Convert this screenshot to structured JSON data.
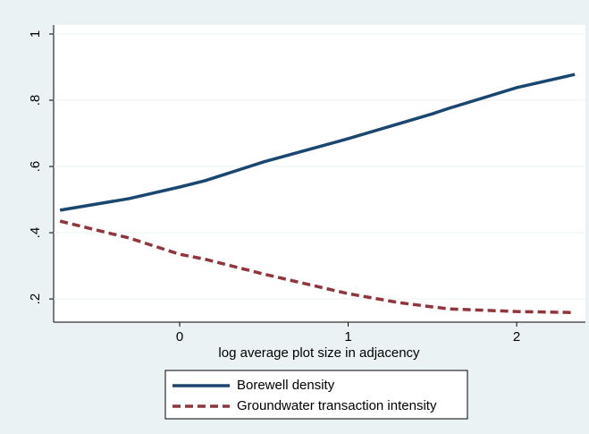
{
  "chart_data": {
    "type": "line",
    "xlabel": "log average plot size in adjacency",
    "x": [
      -0.71,
      -0.3,
      0,
      0.15,
      0.5,
      1,
      1.3,
      1.5,
      1.6,
      2,
      2.345
    ],
    "series": [
      {
        "name": "Borewell density",
        "color": "#1a476f",
        "dash": "solid",
        "values": [
          0.468,
          0.503,
          0.538,
          0.557,
          0.614,
          0.684,
          0.729,
          0.759,
          0.776,
          0.838,
          0.878
        ]
      },
      {
        "name": "Groundwater transaction intensity",
        "color": "#90353b",
        "dash": "dashed",
        "values": [
          0.435,
          0.384,
          0.335,
          0.32,
          0.275,
          0.216,
          0.189,
          0.176,
          0.17,
          0.162,
          0.159
        ]
      }
    ],
    "xlim": [
      -0.748,
      2.408
    ],
    "xticks": [
      0,
      1,
      2
    ],
    "ylim": [
      0.13,
      1.027
    ],
    "yticks": [
      {
        "value": 0.2,
        "label": ".2"
      },
      {
        "value": 0.4,
        "label": ".4"
      },
      {
        "value": 0.6,
        "label": ".6"
      },
      {
        "value": 0.8,
        "label": ".8"
      },
      1
    ],
    "grid": true,
    "legend": "bottom"
  }
}
